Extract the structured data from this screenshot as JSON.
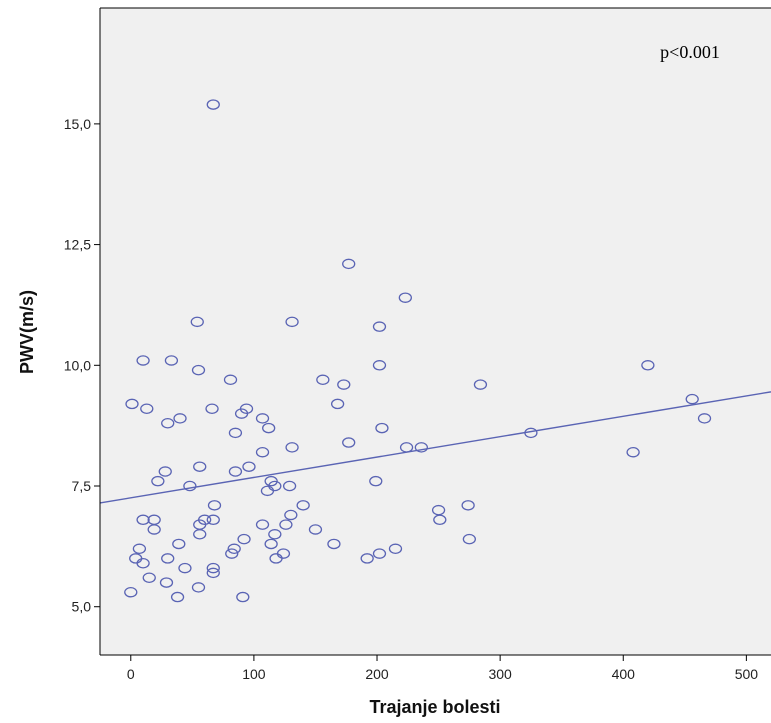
{
  "chart_data": {
    "type": "scatter",
    "xlabel": "Trajanje bolesti",
    "ylabel": "PWV(m/s)",
    "annotation": "p<0.001",
    "xlim": [
      -25,
      520
    ],
    "ylim": [
      4.0,
      17.4
    ],
    "xticks": [
      0,
      100,
      200,
      300,
      400,
      500
    ],
    "xtick_labels": [
      "0",
      "100",
      "200",
      "300",
      "400",
      "500"
    ],
    "yticks": [
      5.0,
      7.5,
      10.0,
      12.5,
      15.0
    ],
    "ytick_labels": [
      "5,0",
      "7,5",
      "10,0",
      "12,5",
      "15,0"
    ],
    "grid": false,
    "colors": {
      "plot_background": "#f0f0f0",
      "marker": "#5a64b4",
      "fit_line": "#5a64b4"
    },
    "fit_line": {
      "x": [
        -25,
        520
      ],
      "y": [
        7.15,
        9.45
      ]
    },
    "points": [
      {
        "x": 67,
        "y": 15.4
      },
      {
        "x": 177,
        "y": 12.1
      },
      {
        "x": 223,
        "y": 11.4
      },
      {
        "x": 54,
        "y": 10.9
      },
      {
        "x": 131,
        "y": 10.9
      },
      {
        "x": 202,
        "y": 10.8
      },
      {
        "x": 10,
        "y": 10.1
      },
      {
        "x": 33,
        "y": 10.1
      },
      {
        "x": 55,
        "y": 9.9
      },
      {
        "x": 202,
        "y": 10.0
      },
      {
        "x": 420,
        "y": 10.0
      },
      {
        "x": 81,
        "y": 9.7
      },
      {
        "x": 156,
        "y": 9.7
      },
      {
        "x": 173,
        "y": 9.6
      },
      {
        "x": 284,
        "y": 9.6
      },
      {
        "x": 1,
        "y": 9.2
      },
      {
        "x": 13,
        "y": 9.1
      },
      {
        "x": 66,
        "y": 9.1
      },
      {
        "x": 90,
        "y": 9.0
      },
      {
        "x": 94,
        "y": 9.1
      },
      {
        "x": 168,
        "y": 9.2
      },
      {
        "x": 456,
        "y": 9.3
      },
      {
        "x": 30,
        "y": 8.8
      },
      {
        "x": 40,
        "y": 8.9
      },
      {
        "x": 107,
        "y": 8.9
      },
      {
        "x": 112,
        "y": 8.7
      },
      {
        "x": 204,
        "y": 8.7
      },
      {
        "x": 466,
        "y": 8.9
      },
      {
        "x": 85,
        "y": 8.6
      },
      {
        "x": 325,
        "y": 8.6
      },
      {
        "x": 177,
        "y": 8.4
      },
      {
        "x": 107,
        "y": 8.2
      },
      {
        "x": 131,
        "y": 8.3
      },
      {
        "x": 224,
        "y": 8.3
      },
      {
        "x": 236,
        "y": 8.3
      },
      {
        "x": 408,
        "y": 8.2
      },
      {
        "x": 56,
        "y": 7.9
      },
      {
        "x": 96,
        "y": 7.9
      },
      {
        "x": 28,
        "y": 7.8
      },
      {
        "x": 85,
        "y": 7.8
      },
      {
        "x": 22,
        "y": 7.6
      },
      {
        "x": 114,
        "y": 7.6
      },
      {
        "x": 199,
        "y": 7.6
      },
      {
        "x": 48,
        "y": 7.5
      },
      {
        "x": 117,
        "y": 7.5
      },
      {
        "x": 129,
        "y": 7.5
      },
      {
        "x": 111,
        "y": 7.4
      },
      {
        "x": 68,
        "y": 7.1
      },
      {
        "x": 140,
        "y": 7.1
      },
      {
        "x": 274,
        "y": 7.1
      },
      {
        "x": 250,
        "y": 7.0
      },
      {
        "x": 130,
        "y": 6.9
      },
      {
        "x": 10,
        "y": 6.8
      },
      {
        "x": 19,
        "y": 6.8
      },
      {
        "x": 60,
        "y": 6.8
      },
      {
        "x": 67,
        "y": 6.8
      },
      {
        "x": 251,
        "y": 6.8
      },
      {
        "x": 56,
        "y": 6.7
      },
      {
        "x": 107,
        "y": 6.7
      },
      {
        "x": 126,
        "y": 6.7
      },
      {
        "x": 19,
        "y": 6.6
      },
      {
        "x": 150,
        "y": 6.6
      },
      {
        "x": 56,
        "y": 6.5
      },
      {
        "x": 117,
        "y": 6.5
      },
      {
        "x": 92,
        "y": 6.4
      },
      {
        "x": 275,
        "y": 6.4
      },
      {
        "x": 39,
        "y": 6.3
      },
      {
        "x": 114,
        "y": 6.3
      },
      {
        "x": 165,
        "y": 6.3
      },
      {
        "x": 7,
        "y": 6.2
      },
      {
        "x": 84,
        "y": 6.2
      },
      {
        "x": 215,
        "y": 6.2
      },
      {
        "x": 82,
        "y": 6.1
      },
      {
        "x": 124,
        "y": 6.1
      },
      {
        "x": 202,
        "y": 6.1
      },
      {
        "x": 4,
        "y": 6.0
      },
      {
        "x": 30,
        "y": 6.0
      },
      {
        "x": 118,
        "y": 6.0
      },
      {
        "x": 192,
        "y": 6.0
      },
      {
        "x": 10,
        "y": 5.9
      },
      {
        "x": 44,
        "y": 5.8
      },
      {
        "x": 67,
        "y": 5.8
      },
      {
        "x": 67,
        "y": 5.7
      },
      {
        "x": 15,
        "y": 5.6
      },
      {
        "x": 29,
        "y": 5.5
      },
      {
        "x": 55,
        "y": 5.4
      },
      {
        "x": 0,
        "y": 5.3
      },
      {
        "x": 38,
        "y": 5.2
      },
      {
        "x": 91,
        "y": 5.2
      }
    ]
  }
}
